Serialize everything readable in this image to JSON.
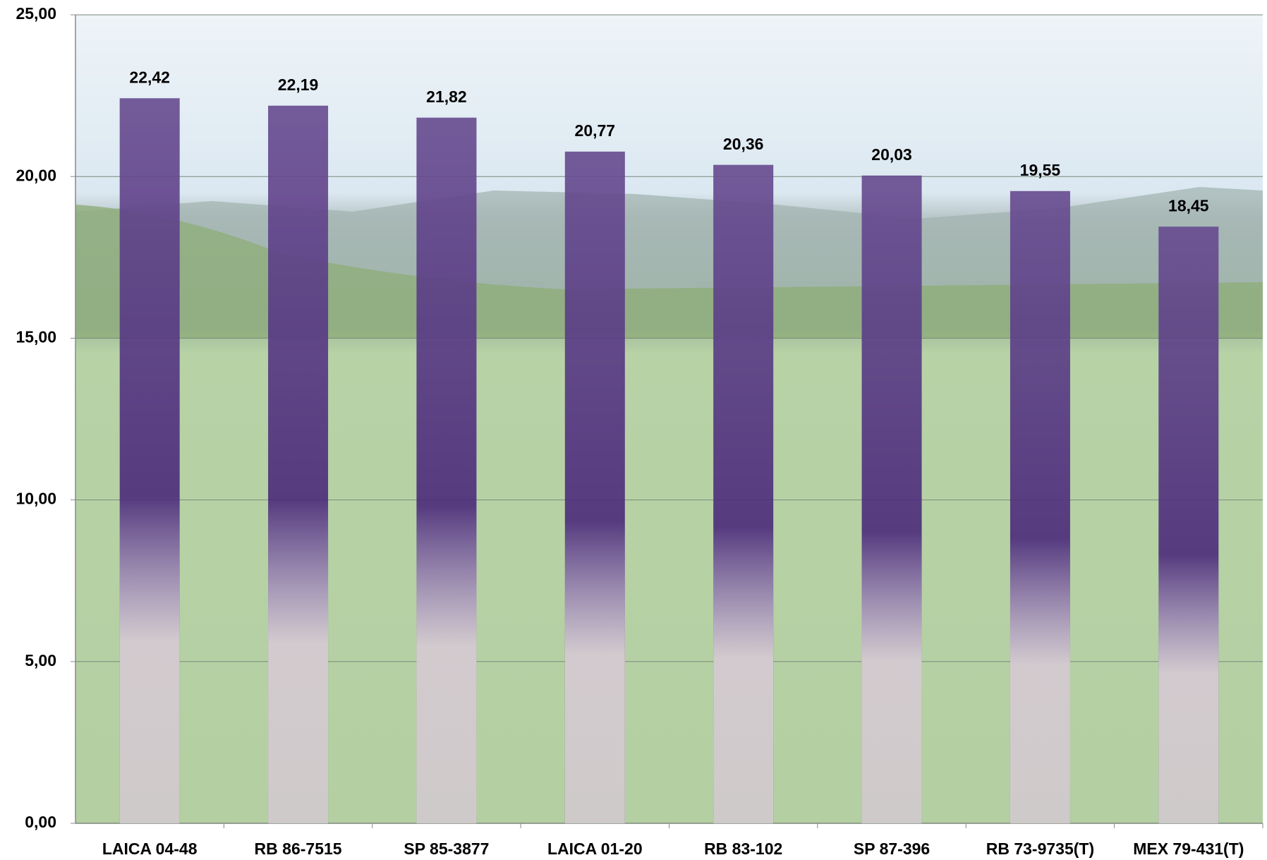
{
  "chart_data": {
    "type": "bar",
    "categories": [
      "LAICA 04-48",
      "RB 86-7515",
      "SP 85-3877",
      "LAICA 01-20",
      "RB 83-102",
      "SP 87-396",
      "RB 73-9735(T)",
      "MEX 79-431(T)"
    ],
    "values": [
      22.42,
      22.19,
      21.82,
      20.77,
      20.36,
      20.03,
      19.55,
      18.45
    ],
    "value_labels": [
      "22,42",
      "22,19",
      "21,82",
      "20,77",
      "20,36",
      "20,03",
      "19,55",
      "18,45"
    ],
    "color": "#4b2a7b",
    "ylim": [
      0,
      25
    ],
    "yticks": [
      {
        "value": 0,
        "label": "0,00"
      },
      {
        "value": 5,
        "label": "5,00"
      },
      {
        "value": 10,
        "label": "10,00"
      },
      {
        "value": 15,
        "label": "15,00"
      },
      {
        "value": 20,
        "label": "20,00"
      },
      {
        "value": 25,
        "label": "25,00"
      }
    ],
    "grid": true
  }
}
